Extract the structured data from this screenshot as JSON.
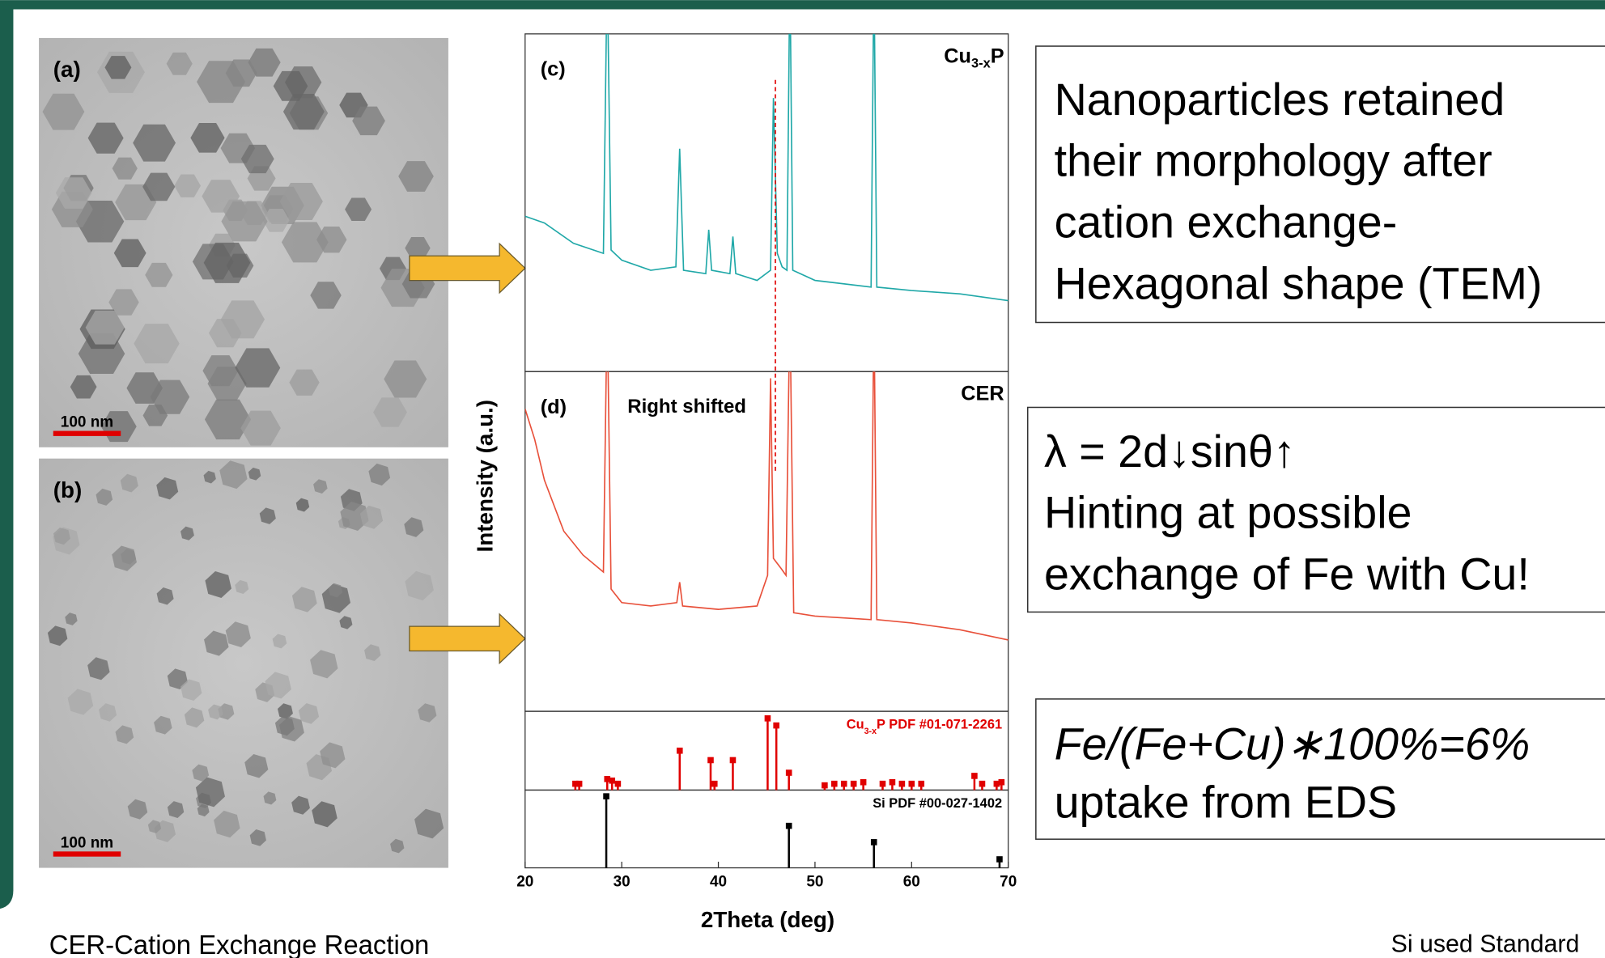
{
  "slide": {
    "tem": [
      {
        "label": "(a)",
        "scale_bar": "100 nm"
      },
      {
        "label": "(b)",
        "scale_bar": "100 nm"
      }
    ],
    "notes": [
      {
        "lines": [
          "Nanoparticles retained",
          "their morphology after",
          "cation exchange-",
          "Hexagonal shape (TEM)"
        ]
      },
      {
        "lines": [
          "λ = 2d↓sinθ↑",
          "Hinting at possible",
          "exchange of Fe with Cu!"
        ]
      },
      {
        "lines": [
          "Fe/(Fe+Cu)∗100%=6%",
          "uptake from EDS"
        ]
      }
    ],
    "footer_left": "CER-Cation Exchange Reaction",
    "footer_right": "Si used Standard"
  },
  "chart_data": {
    "type": "xrd",
    "xlabel": "2Theta (deg)",
    "ylabel": "Intensity (a.u.)",
    "xlim": [
      20,
      70
    ],
    "xticks": [
      20,
      30,
      40,
      50,
      60,
      70
    ],
    "marker_x": 45.9,
    "panels": [
      {
        "label": "(c)",
        "title": [
          "Cu",
          "3-x",
          "P"
        ],
        "color": "#20a8a8",
        "ylim": [
          0,
          100
        ],
        "x": [
          20,
          22,
          25,
          28.1,
          28.5,
          28.9,
          30,
          33,
          35.6,
          36,
          36.4,
          38.7,
          39,
          39.3,
          41.2,
          41.5,
          41.8,
          44,
          45.4,
          45.7,
          46.1,
          46.6,
          47.1,
          47.4,
          47.7,
          50,
          55.8,
          56.1,
          56.4,
          60,
          65,
          70
        ],
        "values": [
          46,
          44,
          38,
          35,
          120,
          36,
          33,
          30,
          31,
          66,
          30,
          29,
          42,
          30,
          29,
          40,
          29,
          27,
          30,
          81,
          35,
          31,
          30,
          120,
          30,
          27,
          25,
          120,
          25,
          24,
          23,
          21
        ]
      },
      {
        "label": "(d)",
        "title": [
          "CER"
        ],
        "annotation": "Right shifted",
        "color": "#e8503a",
        "ylim": [
          0,
          100
        ],
        "x": [
          20,
          21,
          22,
          24,
          26,
          28.1,
          28.5,
          28.9,
          30,
          33,
          35.7,
          36,
          36.3,
          40,
          44,
          45.1,
          45.4,
          45.7,
          46.5,
          47,
          47.4,
          47.8,
          50,
          55.8,
          56.1,
          56.4,
          60,
          65,
          70
        ],
        "values": [
          89,
          80,
          68,
          53,
          46,
          41,
          120,
          36,
          32,
          31,
          32,
          38,
          31,
          30,
          31,
          40,
          98,
          45,
          42,
          40,
          120,
          29,
          28,
          27,
          120,
          27,
          26,
          24,
          21
        ]
      }
    ],
    "references": [
      {
        "name": [
          "Cu",
          "3-x",
          "P PDF #01-071-2261"
        ],
        "color": "#e00000",
        "ylim": [
          0,
          100
        ],
        "x": [
          25.2,
          25.6,
          28.5,
          29.0,
          29.6,
          36.0,
          39.2,
          39.6,
          41.5,
          45.1,
          46.0,
          47.3,
          51.0,
          52.0,
          53.0,
          54.0,
          55.0,
          57.0,
          58.0,
          59.0,
          60.0,
          61.0,
          66.5,
          67.3,
          68.8,
          69.3
        ],
        "values": [
          8,
          8,
          14,
          12,
          8,
          50,
          38,
          8,
          38,
          91,
          82,
          22,
          6,
          8,
          8,
          8,
          10,
          8,
          10,
          8,
          8,
          8,
          18,
          8,
          8,
          10
        ]
      },
      {
        "name": [
          "Si PDF #00-027-1402"
        ],
        "color": "#000000",
        "ylim": [
          0,
          100
        ],
        "x": [
          28.4,
          47.3,
          56.1,
          69.1
        ],
        "values": [
          92,
          54,
          33,
          11
        ]
      }
    ]
  }
}
